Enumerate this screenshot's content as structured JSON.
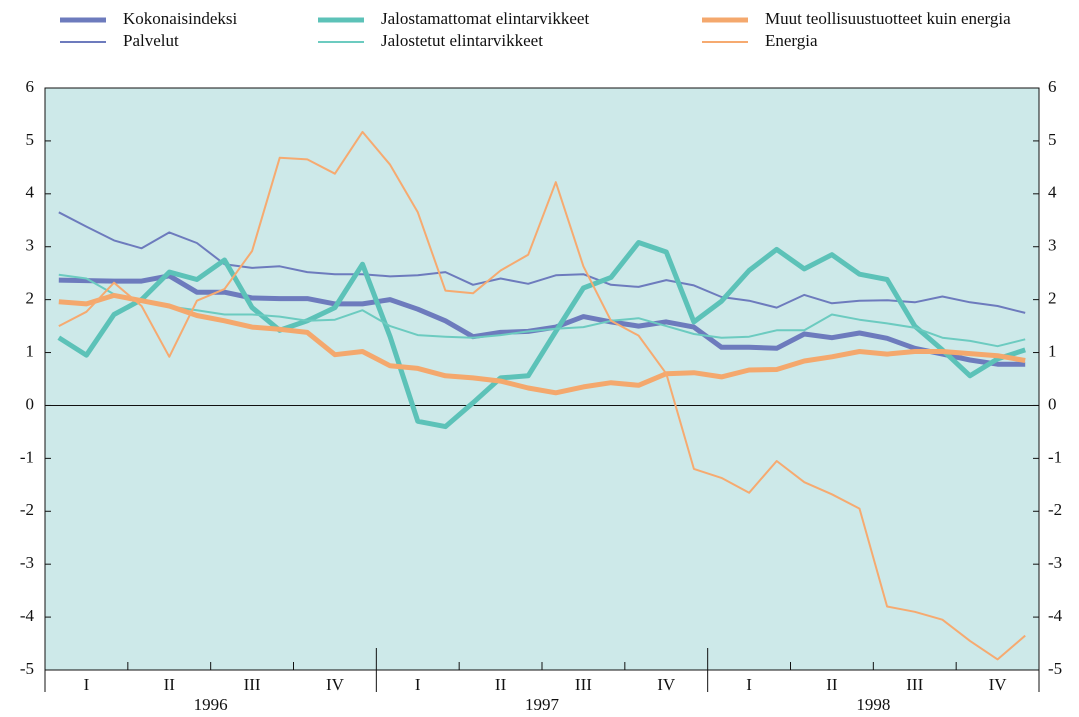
{
  "chart_data": {
    "type": "line",
    "ylim": [
      -5,
      6
    ],
    "yticks": [
      -5,
      -4,
      -3,
      -2,
      -1,
      0,
      1,
      2,
      3,
      4,
      5,
      6
    ],
    "y2lim": [
      -5,
      6
    ],
    "y2ticks": [
      -5,
      -4,
      -3,
      -2,
      -1,
      0,
      1,
      2,
      3,
      4,
      5,
      6
    ],
    "quarter_labels": [
      "I",
      "II",
      "III",
      "IV",
      "I",
      "II",
      "III",
      "IV",
      "I",
      "II",
      "III",
      "IV"
    ],
    "year_labels": [
      "1996",
      "1997",
      "1998"
    ],
    "background": "#cde9e9",
    "series": [
      {
        "name": "Kokonaisindeksi",
        "color": "#6d7bbd",
        "width": 5,
        "values": [
          2.37,
          2.36,
          2.35,
          2.35,
          2.45,
          2.14,
          2.14,
          2.03,
          2.02,
          2.02,
          1.92,
          1.92,
          2.0,
          1.82,
          1.6,
          1.3,
          1.38,
          1.4,
          1.48,
          1.68,
          1.58,
          1.5,
          1.58,
          1.48,
          1.1,
          1.1,
          1.08,
          1.35,
          1.28,
          1.37,
          1.27,
          1.08,
          0.97,
          0.86,
          0.78,
          0.78
        ]
      },
      {
        "name": "Palvelut",
        "color": "#6d7bbd",
        "width": 2,
        "values": [
          3.65,
          3.38,
          3.12,
          2.97,
          3.27,
          3.07,
          2.67,
          2.6,
          2.63,
          2.52,
          2.48,
          2.48,
          2.44,
          2.46,
          2.52,
          2.28,
          2.4,
          2.3,
          2.46,
          2.48,
          2.28,
          2.24,
          2.37,
          2.27,
          2.05,
          1.98,
          1.85,
          2.09,
          1.93,
          1.98,
          1.99,
          1.95,
          2.06,
          1.95,
          1.88,
          1.75
        ]
      },
      {
        "name": "Jalostamattomat elintarvikkeet",
        "color": "#5cc2b8",
        "width": 5,
        "values": [
          1.28,
          0.95,
          1.72,
          2.0,
          2.52,
          2.38,
          2.75,
          1.85,
          1.42,
          1.6,
          1.85,
          2.67,
          1.3,
          -0.3,
          -0.4,
          0.05,
          0.52,
          0.56,
          1.4,
          2.22,
          2.42,
          3.08,
          2.9,
          1.58,
          1.97,
          2.55,
          2.95,
          2.58,
          2.85,
          2.48,
          2.38,
          1.5,
          1.05,
          0.56,
          0.88,
          1.05
        ]
      },
      {
        "name": "Jalostetut elintarvikkeet",
        "color": "#6ccbc0",
        "width": 2,
        "values": [
          2.47,
          2.4,
          2.1,
          1.98,
          1.87,
          1.8,
          1.72,
          1.72,
          1.68,
          1.6,
          1.62,
          1.8,
          1.5,
          1.33,
          1.3,
          1.28,
          1.33,
          1.4,
          1.45,
          1.48,
          1.6,
          1.65,
          1.5,
          1.35,
          1.28,
          1.3,
          1.42,
          1.42,
          1.72,
          1.62,
          1.55,
          1.47,
          1.28,
          1.22,
          1.12,
          1.25
        ]
      },
      {
        "name": "Muut teollisuustuotteet kuin energia",
        "color": "#f4a86d",
        "width": 5,
        "values": [
          1.96,
          1.92,
          2.08,
          1.98,
          1.88,
          1.7,
          1.6,
          1.48,
          1.44,
          1.38,
          0.96,
          1.02,
          0.75,
          0.7,
          0.56,
          0.52,
          0.46,
          0.33,
          0.24,
          0.35,
          0.43,
          0.38,
          0.6,
          0.62,
          0.54,
          0.67,
          0.68,
          0.84,
          0.92,
          1.02,
          0.97,
          1.02,
          1.02,
          0.98,
          0.94,
          0.85
        ]
      },
      {
        "name": "Energia",
        "color": "#f6aa70",
        "width": 2,
        "values": [
          1.5,
          1.77,
          2.32,
          1.88,
          0.92,
          1.98,
          2.2,
          2.92,
          4.68,
          4.65,
          4.38,
          5.17,
          4.55,
          3.65,
          2.17,
          2.12,
          2.55,
          2.85,
          4.22,
          2.63,
          1.6,
          1.32,
          0.6,
          -1.2,
          -1.37,
          -1.65,
          -1.05,
          -1.45,
          -1.68,
          -1.95,
          -3.8,
          -3.9,
          -4.05,
          -4.45,
          -4.8,
          -4.35
        ]
      }
    ]
  }
}
